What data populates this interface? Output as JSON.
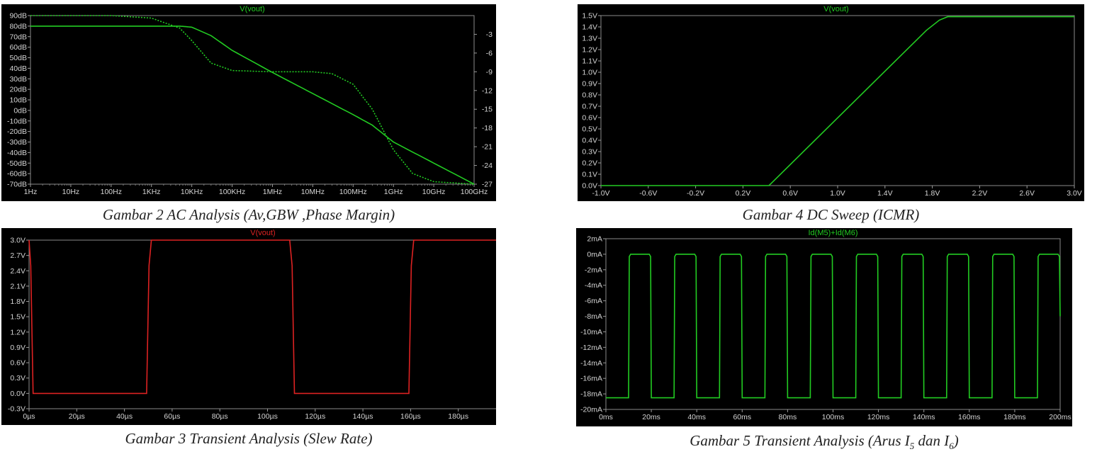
{
  "charts": [
    {
      "id": "ac",
      "title": "V(vout)",
      "caption": "Gambar 2 AC Analysis (Av,GBW ,Phase Margin)",
      "color": "#22cc22",
      "chart_data": {
        "type": "line",
        "title": "V(vout)",
        "x_scale": "log",
        "x_ticks": [
          "1Hz",
          "10Hz",
          "100Hz",
          "1KHz",
          "10KHz",
          "100KHz",
          "1MHz",
          "10MHz",
          "100MHz",
          "1GHz",
          "10GHz",
          "100GHz"
        ],
        "y_ticks": [
          "90dB",
          "80dB",
          "70dB",
          "60dB",
          "50dB",
          "40dB",
          "30dB",
          "20dB",
          "10dB",
          "0dB",
          "-10dB",
          "-20dB",
          "-30dB",
          "-40dB",
          "-50dB",
          "-60dB",
          "-70dB"
        ],
        "y2_ticks": [
          "-3",
          "-6",
          "-9",
          "-12",
          "-15",
          "-18",
          "-21",
          "-24",
          "-27"
        ],
        "ylim": [
          -70,
          90
        ],
        "y2lim": [
          -27,
          0
        ],
        "series": [
          {
            "style": "solid",
            "axis": "left",
            "x_hz": [
              1,
              1000,
              5000,
              10000,
              30000,
              100000,
              1000000,
              10000000,
              100000000,
              300000000,
              1000000000,
              10000000000,
              100000000000
            ],
            "y_db": [
              80,
              80,
              80,
              79,
              71,
              57,
              36,
              16,
              -4,
              -14,
              -30,
              -50,
              -70
            ]
          },
          {
            "style": "dotted",
            "axis": "right",
            "x_hz": [
              1,
              100,
              1000,
              5000,
              10000,
              30000,
              100000,
              1000000,
              10000000,
              30000000,
              100000000,
              300000000,
              1000000000,
              3000000000,
              10000000000,
              100000000000
            ],
            "y_deg": [
              0,
              0,
              -0.4,
              -2,
              -4,
              -7.6,
              -8.8,
              -9,
              -9,
              -9.3,
              -11,
              -15,
              -21.5,
              -25.3,
              -26.6,
              -27
            ]
          }
        ]
      }
    },
    {
      "id": "dc",
      "title": "V(vout)",
      "caption": "Gambar 4 DC Sweep (ICMR)",
      "color": "#22cc22",
      "chart_data": {
        "type": "line",
        "title": "V(vout)",
        "x_ticks": [
          "-1.0V",
          "-0.6V",
          "-0.2V",
          "0.2V",
          "0.6V",
          "1.0V",
          "1.4V",
          "1.8V",
          "2.2V",
          "2.6V",
          "3.0V"
        ],
        "xlim": [
          -1.0,
          3.0
        ],
        "y_ticks": [
          "1.5V",
          "1.4V",
          "1.3V",
          "1.2V",
          "1.1V",
          "1.0V",
          "0.9V",
          "0.8V",
          "0.7V",
          "0.6V",
          "0.5V",
          "0.4V",
          "0.3V",
          "0.2V",
          "0.1V",
          "0.0V"
        ],
        "ylim": [
          0,
          1.5
        ],
        "series": [
          {
            "x": [
              -1.0,
              0.42,
              1.75,
              1.86,
              1.93,
              3.0
            ],
            "y": [
              0,
              0,
              1.37,
              1.46,
              1.49,
              1.49
            ]
          }
        ]
      }
    },
    {
      "id": "tr",
      "title": "V(vout)",
      "caption": "Gambar 3 Transient Analysis (Slew Rate)",
      "color": "#dd2222",
      "chart_data": {
        "type": "line",
        "title": "V(vout)",
        "x_ticks": [
          "0µs",
          "20µs",
          "40µs",
          "60µs",
          "80µs",
          "100µs",
          "120µs",
          "140µs",
          "160µs",
          "180µs",
          "200µs"
        ],
        "xlim": [
          0,
          200
        ],
        "y_ticks": [
          "3.0V",
          "2.7V",
          "2.4V",
          "2.1V",
          "1.8V",
          "1.5V",
          "1.2V",
          "0.9V",
          "0.6V",
          "0.3V",
          "0.0V",
          "-0.3V"
        ],
        "ylim": [
          -0.3,
          3.0
        ],
        "series": [
          {
            "x": [
              0,
              0.7,
              1.7,
              49.3,
              50.3,
              51.3,
              109.3,
              110.3,
              111.3,
              159.3,
              160.3,
              161.3,
              200
            ],
            "y": [
              3.0,
              2.5,
              0.0,
              0.0,
              2.5,
              3.0,
              3.0,
              2.5,
              0.0,
              0.0,
              2.5,
              3.0,
              3.0
            ]
          }
        ]
      }
    },
    {
      "id": "cur",
      "title": "Id(M5)+Id(M6)",
      "caption_prefix": "Gambar 5 Transient Analysis (Arus I",
      "caption_sub1": "5",
      "caption_mid": " dan I",
      "caption_sub2": "6",
      "caption_suffix": ")",
      "color": "#22cc22",
      "chart_data": {
        "type": "line",
        "title": "Id(M5)+Id(M6)",
        "x_ticks": [
          "0ms",
          "20ms",
          "40ms",
          "60ms",
          "80ms",
          "100ms",
          "120ms",
          "140ms",
          "160ms",
          "180ms",
          "200ms"
        ],
        "xlim": [
          0,
          200
        ],
        "y_ticks": [
          "2mA",
          "0mA",
          "-2mA",
          "-4mA",
          "-6mA",
          "-8mA",
          "-10mA",
          "-12mA",
          "-14mA",
          "-16mA",
          "-18mA",
          "-20mA"
        ],
        "ylim": [
          -20,
          2
        ],
        "period_ms": 20,
        "high_start_ms": 10,
        "high_level_mA": 0,
        "low_level_mA": -18.5
      }
    }
  ]
}
